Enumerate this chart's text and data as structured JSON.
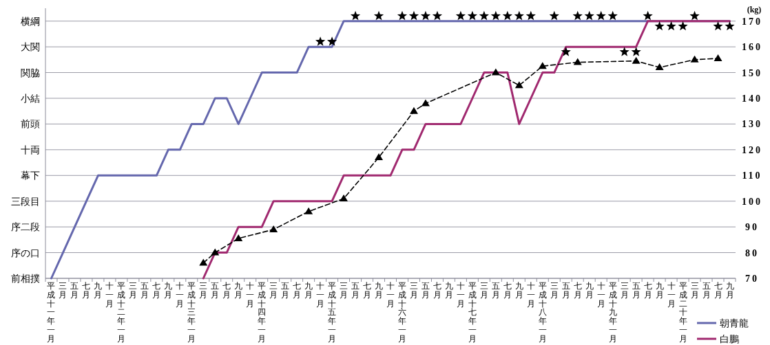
{
  "chart_data": {
    "type": "line",
    "categories": [
      "平成十一年一月",
      "三月",
      "五月",
      "七月",
      "九月",
      "十一月",
      "平成十二年一月",
      "三月",
      "五月",
      "七月",
      "九月",
      "十一月",
      "平成十三年一月",
      "三月",
      "五月",
      "七月",
      "九月",
      "十一月",
      "平成十四年一月",
      "三月",
      "五月",
      "七月",
      "九月",
      "十一月",
      "平成十五年一月",
      "三月",
      "五月",
      "七月",
      "九月",
      "十一月",
      "平成十六年一月",
      "三月",
      "五月",
      "七月",
      "九月",
      "十一月",
      "平成十七年一月",
      "三月",
      "五月",
      "七月",
      "九月",
      "十一月",
      "平成十八年一月",
      "三月",
      "五月",
      "七月",
      "九月",
      "十一月",
      "平成十九年一月",
      "三月",
      "五月",
      "七月",
      "九月",
      "十一月",
      "平成二十年一月",
      "三月",
      "五月",
      "七月",
      "九月"
    ],
    "ylim": [
      70,
      175
    ],
    "yticks": [
      70,
      80,
      90,
      100,
      110,
      120,
      130,
      140,
      150,
      160,
      170
    ],
    "ylabel": "(kg)",
    "annotations": [
      "横綱",
      "大関",
      "関脇",
      "小結",
      "前頭",
      "十両",
      "幕下",
      "三段目",
      "序二段",
      "序の口",
      "前相撲"
    ],
    "grid": "y",
    "legend": "bottom right",
    "series": [
      {
        "name": "朝青龍",
        "color": "#6467ad",
        "type": "line",
        "line_style": "solid",
        "values": [
          70,
          80,
          90,
          100,
          110,
          110,
          110,
          110,
          110,
          110,
          120,
          120,
          130,
          130,
          140,
          140,
          130,
          140,
          150,
          150,
          150,
          150,
          160,
          160,
          160,
          170,
          170,
          170,
          170,
          170,
          170,
          170,
          170,
          170,
          170,
          170,
          170,
          170,
          170,
          170,
          170,
          170,
          170,
          170,
          170,
          170,
          170,
          170,
          170,
          170,
          170,
          170,
          170,
          170,
          170,
          170,
          170,
          170,
          170
        ]
      },
      {
        "name": "白鵬",
        "color": "#a0296f",
        "type": "line",
        "line_style": "solid",
        "values": [
          null,
          null,
          null,
          null,
          null,
          null,
          null,
          null,
          null,
          null,
          null,
          null,
          null,
          70,
          80,
          80,
          90,
          90,
          90,
          100,
          100,
          100,
          100,
          100,
          100,
          110,
          110,
          110,
          110,
          110,
          120,
          120,
          130,
          130,
          130,
          130,
          140,
          150,
          150,
          150,
          130,
          140,
          150,
          150,
          160,
          160,
          160,
          160,
          160,
          160,
          160,
          170,
          170,
          170,
          170,
          170,
          170,
          170,
          170
        ]
      },
      {
        "color": "#000000",
        "type": "line",
        "marker": "triangle",
        "line_style": "dashed",
        "values": [
          null,
          null,
          null,
          null,
          null,
          null,
          null,
          null,
          null,
          null,
          null,
          null,
          null,
          76,
          80,
          null,
          85.5,
          null,
          null,
          89,
          null,
          null,
          96,
          null,
          null,
          101,
          null,
          null,
          117,
          null,
          null,
          135,
          138,
          null,
          null,
          null,
          null,
          null,
          150,
          null,
          145,
          null,
          152.5,
          null,
          null,
          154,
          null,
          null,
          null,
          null,
          154.5,
          null,
          152,
          null,
          null,
          155,
          null,
          155.5,
          null
        ]
      },
      {
        "color": "#000000",
        "type": "scatter",
        "marker": "star",
        "values": [
          null,
          null,
          null,
          null,
          null,
          null,
          null,
          null,
          null,
          null,
          null,
          null,
          null,
          null,
          null,
          null,
          null,
          null,
          null,
          null,
          null,
          null,
          null,
          162,
          162,
          null,
          172,
          null,
          172,
          null,
          172,
          172,
          172,
          172,
          null,
          172,
          172,
          172,
          172,
          172,
          172,
          172,
          null,
          172,
          null,
          172,
          172,
          172,
          172,
          null,
          null,
          172,
          null,
          null,
          null,
          172,
          null,
          null,
          null
        ]
      },
      {
        "color": "#000000",
        "type": "scatter",
        "marker": "star",
        "values": [
          null,
          null,
          null,
          null,
          null,
          null,
          null,
          null,
          null,
          null,
          null,
          null,
          null,
          null,
          null,
          null,
          null,
          null,
          null,
          null,
          null,
          null,
          null,
          null,
          null,
          null,
          null,
          null,
          null,
          null,
          null,
          null,
          null,
          null,
          null,
          null,
          null,
          null,
          null,
          null,
          null,
          null,
          null,
          null,
          158,
          null,
          null,
          null,
          null,
          158,
          158,
          null,
          168,
          168,
          168,
          null,
          null,
          168,
          168
        ]
      }
    ]
  }
}
